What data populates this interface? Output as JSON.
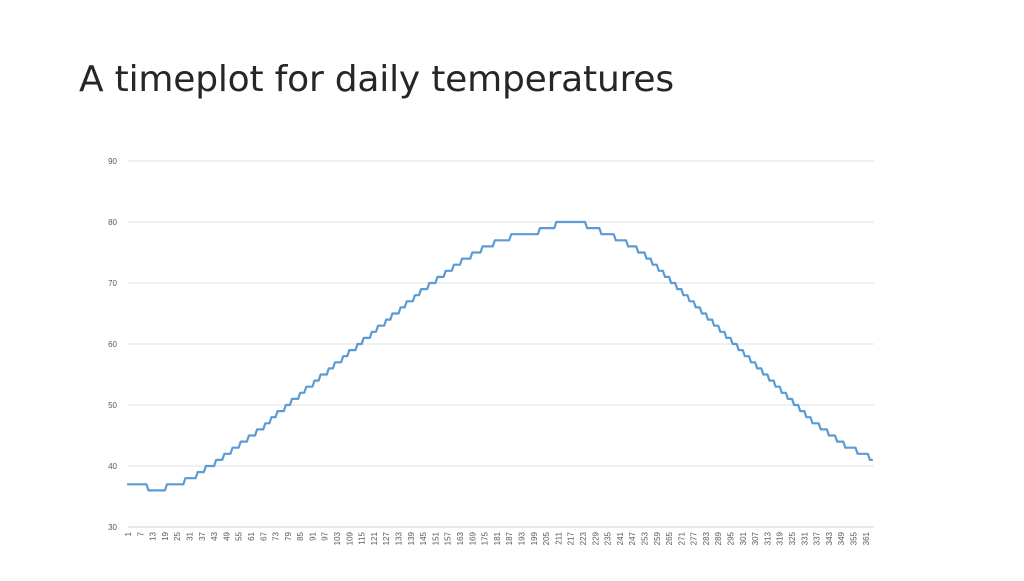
{
  "slide": {
    "title": "A timeplot for daily temperatures"
  },
  "chart_data": {
    "type": "line",
    "title": "",
    "xlabel": "",
    "ylabel": "",
    "xlim": [
      1,
      365
    ],
    "ylim": [
      30,
      90
    ],
    "yticks": [
      30,
      40,
      50,
      60,
      70,
      80,
      90
    ],
    "xticks": [
      1,
      7,
      13,
      19,
      25,
      31,
      37,
      43,
      49,
      55,
      61,
      67,
      73,
      79,
      85,
      91,
      97,
      103,
      109,
      115,
      121,
      127,
      133,
      139,
      145,
      151,
      157,
      163,
      169,
      175,
      181,
      187,
      193,
      199,
      205,
      211,
      217,
      223,
      229,
      235,
      241,
      247,
      253,
      259,
      265,
      271,
      277,
      283,
      289,
      295,
      301,
      307,
      313,
      319,
      325,
      331,
      337,
      343,
      349,
      355,
      361
    ],
    "grid": "horizontal",
    "legend": "none",
    "series": [
      {
        "color": "#5b9bd5",
        "x": [
          1,
          10,
          11,
          19,
          20,
          28,
          29,
          34,
          35,
          38,
          39,
          43,
          44,
          47,
          48,
          51,
          52,
          55,
          56,
          59,
          60,
          63,
          64,
          67,
          68,
          70,
          71,
          73,
          74,
          77,
          78,
          80,
          81,
          84,
          85,
          87,
          88,
          91,
          92,
          94,
          95,
          98,
          99,
          101,
          102,
          105,
          106,
          108,
          109,
          112,
          113,
          115,
          116,
          119,
          120,
          122,
          123,
          126,
          127,
          129,
          130,
          133,
          134,
          136,
          137,
          140,
          141,
          143,
          144,
          147,
          148,
          151,
          152,
          155,
          156,
          159,
          160,
          163,
          164,
          168,
          169,
          173,
          174,
          179,
          180,
          187,
          188,
          201,
          202,
          209,
          210,
          224,
          225,
          231,
          232,
          238,
          239,
          244,
          245,
          249,
          250,
          253,
          254,
          256,
          257,
          259,
          260,
          262,
          263,
          265,
          266,
          268,
          269,
          271,
          272,
          274,
          275,
          277,
          278,
          280,
          281,
          283,
          284,
          286,
          287,
          289,
          290,
          292,
          293,
          295,
          296,
          298,
          299,
          301,
          302,
          304,
          305,
          307,
          308,
          310,
          311,
          313,
          314,
          316,
          317,
          319,
          320,
          322,
          323,
          325,
          326,
          328,
          329,
          331,
          332,
          334,
          335,
          338,
          339,
          342,
          343,
          346,
          347,
          350,
          351,
          356,
          357,
          362,
          363,
          364
        ],
        "values": [
          37,
          37,
          36,
          36,
          37,
          37,
          38,
          38,
          39,
          39,
          40,
          40,
          41,
          41,
          42,
          42,
          43,
          43,
          44,
          44,
          45,
          45,
          46,
          46,
          47,
          47,
          48,
          48,
          49,
          49,
          50,
          50,
          51,
          51,
          52,
          52,
          53,
          53,
          54,
          54,
          55,
          55,
          56,
          56,
          57,
          57,
          58,
          58,
          59,
          59,
          60,
          60,
          61,
          61,
          62,
          62,
          63,
          63,
          64,
          64,
          65,
          65,
          66,
          66,
          67,
          67,
          68,
          68,
          69,
          69,
          70,
          70,
          71,
          71,
          72,
          72,
          73,
          73,
          74,
          74,
          75,
          75,
          76,
          76,
          77,
          77,
          78,
          78,
          79,
          79,
          80,
          80,
          79,
          79,
          78,
          78,
          77,
          77,
          76,
          76,
          75,
          75,
          74,
          74,
          73,
          73,
          72,
          72,
          71,
          71,
          70,
          70,
          69,
          69,
          68,
          68,
          67,
          67,
          66,
          66,
          65,
          65,
          64,
          64,
          63,
          63,
          62,
          62,
          61,
          61,
          60,
          60,
          59,
          59,
          58,
          58,
          57,
          57,
          56,
          56,
          55,
          55,
          54,
          54,
          53,
          53,
          52,
          52,
          51,
          51,
          50,
          50,
          49,
          49,
          48,
          48,
          47,
          47,
          46,
          46,
          45,
          45,
          44,
          44,
          43,
          43,
          42,
          42,
          41,
          41
        ]
      }
    ]
  }
}
